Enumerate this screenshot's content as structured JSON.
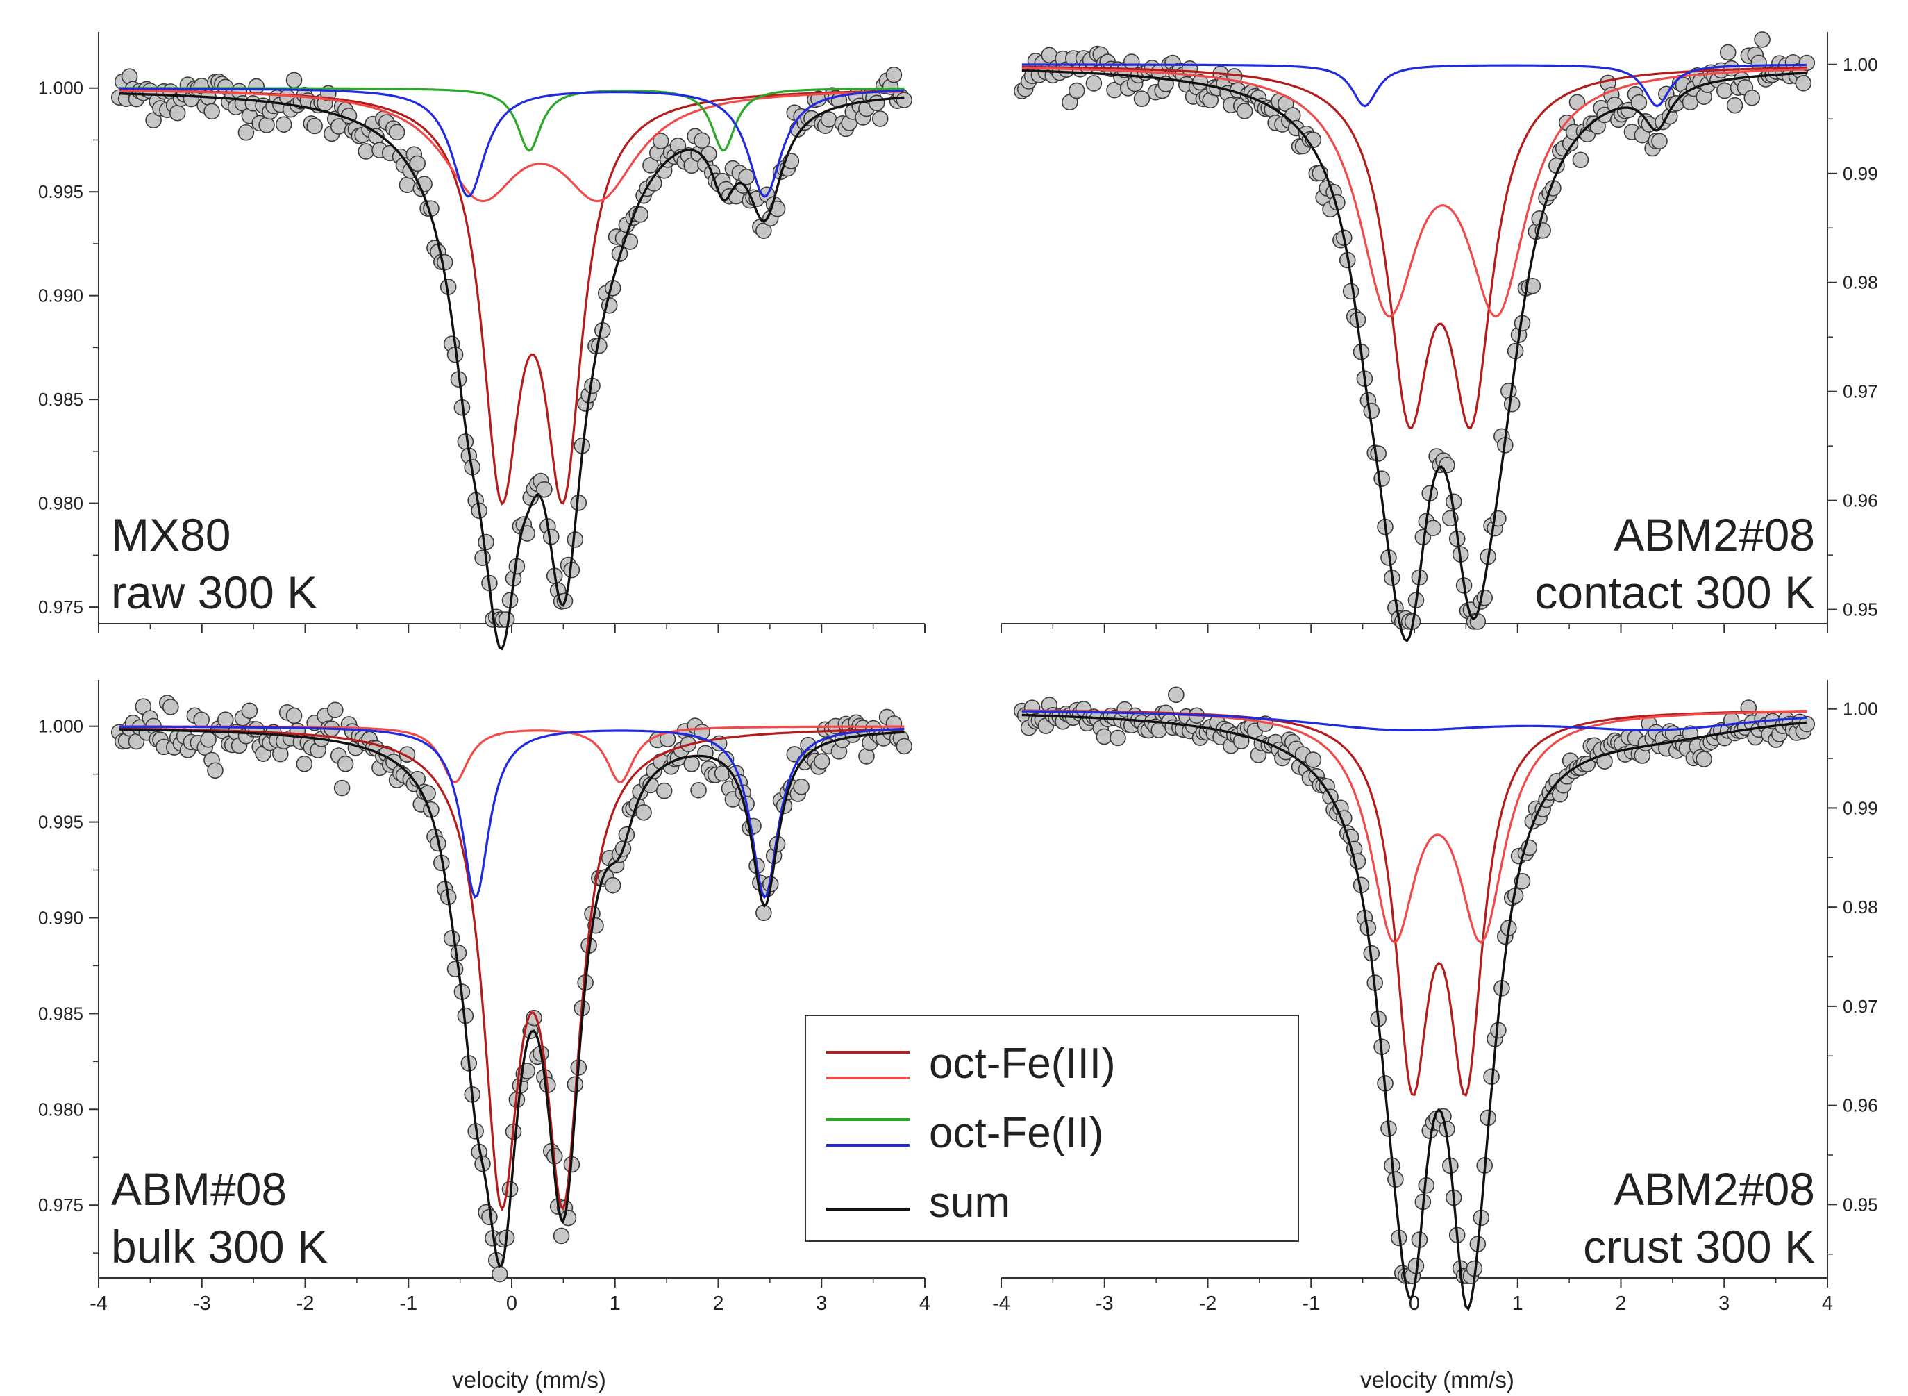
{
  "figure": {
    "x_axis_label": "velocity (mm/s)",
    "legend": {
      "entries": [
        {
          "label": "oct-Fe(III)",
          "colors": [
            "#b51c1c",
            "#f04b4b"
          ]
        },
        {
          "label": "oct-Fe(II)",
          "colors": [
            "#2aa82a",
            "#1f2bdc"
          ]
        },
        {
          "label": "sum",
          "colors": [
            "#111111"
          ]
        }
      ]
    }
  },
  "colors": {
    "fe3_dark": "#b51c1c",
    "fe3_light": "#f04b4b",
    "fe2_green": "#2aa82a",
    "fe2_blue": "#1f2bdc",
    "sum": "#111111",
    "data_fill": "#c4c4c4",
    "data_stroke": "#3a3a3a"
  },
  "chart_data": [
    {
      "id": "mx80",
      "type": "line",
      "title_line1": "MX80",
      "title_line2": "raw 300 K",
      "xlabel": "",
      "ylabel": "",
      "xlim": [
        -4,
        4
      ],
      "ylim": [
        0.9742,
        1.0025
      ],
      "yaxis_side": "left",
      "y_ticks": [
        1.0,
        0.995,
        0.99,
        0.985,
        0.98,
        0.975
      ],
      "y_tick_labels": [
        "1.000",
        "0.995",
        "0.990",
        "0.985",
        "0.980",
        "0.975"
      ],
      "x_ticks": [
        -4,
        -3,
        -2,
        -1,
        0,
        1,
        2,
        3,
        4
      ],
      "x_tick_labels": [],
      "series": [
        {
          "name": "oct-Fe(III) doublet 1",
          "color": "#b51c1c",
          "baseline": 1.0,
          "peaks": [
            [
              -0.1,
              0.45,
              0.0178
            ],
            [
              0.5,
              0.45,
              0.0178
            ]
          ]
        },
        {
          "name": "oct-Fe(III) doublet 2",
          "color": "#f04b4b",
          "baseline": 1.0,
          "peaks": [
            [
              -0.3,
              0.9,
              0.0048
            ],
            [
              0.85,
              0.9,
              0.0048
            ]
          ]
        },
        {
          "name": "oct-Fe(II) doublet 1",
          "color": "#2aa82a",
          "baseline": 1.0,
          "peaks": [
            [
              0.17,
              0.28,
              0.003
            ],
            [
              2.05,
              0.28,
              0.003
            ]
          ]
        },
        {
          "name": "oct-Fe(II) doublet 2",
          "color": "#1f2bdc",
          "baseline": 1.0,
          "peaks": [
            [
              -0.42,
              0.4,
              0.0052
            ],
            [
              2.45,
              0.4,
              0.0052
            ]
          ]
        }
      ],
      "sum": {
        "name": "sum",
        "color": "#111111"
      },
      "data_noise": 0.0006
    },
    {
      "id": "abm2-contact",
      "type": "line",
      "title_line1": "ABM2#08",
      "title_line2": "contact 300 K",
      "xlabel": "",
      "ylabel": "",
      "xlim": [
        -4,
        4
      ],
      "ylim": [
        0.9487,
        1.0026
      ],
      "yaxis_side": "right",
      "y_ticks": [
        1.0,
        0.99,
        0.98,
        0.97,
        0.96,
        0.95
      ],
      "y_tick_labels": [
        "1.00",
        "0.99",
        "0.98",
        "0.97",
        "0.96",
        "0.95"
      ],
      "x_ticks": [
        -4,
        -3,
        -2,
        -1,
        0,
        1,
        2,
        3,
        4
      ],
      "x_tick_labels": [],
      "series": [
        {
          "name": "oct-Fe(III) doublet 1",
          "color": "#b51c1c",
          "baseline": 1.0,
          "peaks": [
            [
              -0.05,
              0.5,
              0.029
            ],
            [
              0.55,
              0.5,
              0.029
            ]
          ]
        },
        {
          "name": "oct-Fe(III) doublet 2",
          "color": "#f04b4b",
          "baseline": 1.0,
          "peaks": [
            [
              -0.25,
              0.7,
              0.021
            ],
            [
              0.8,
              0.7,
              0.021
            ]
          ]
        },
        {
          "name": "oct-Fe(II) doublet",
          "color": "#1f2bdc",
          "baseline": 1.0,
          "peaks": [
            [
              -0.48,
              0.3,
              0.0038
            ],
            [
              2.35,
              0.3,
              0.0038
            ]
          ]
        }
      ],
      "sum": {
        "name": "sum",
        "color": "#111111"
      },
      "data_noise": 0.0012
    },
    {
      "id": "abm-bulk",
      "type": "line",
      "title_line1": "ABM#08",
      "title_line2": "bulk  300 K",
      "xlabel": "velocity (mm/s)",
      "ylabel": "",
      "xlim": [
        -4,
        4
      ],
      "ylim": [
        0.9712,
        1.0022
      ],
      "yaxis_side": "left",
      "y_ticks": [
        1.0,
        0.995,
        0.99,
        0.985,
        0.98,
        0.975
      ],
      "y_tick_labels": [
        "1.000",
        "0.995",
        "0.990",
        "0.985",
        "0.980",
        "0.975"
      ],
      "x_ticks": [
        -4,
        -3,
        -2,
        -1,
        0,
        1,
        2,
        3,
        4
      ],
      "x_tick_labels": [
        "-4",
        "-3",
        "-2",
        "-1",
        "0",
        "1",
        "2",
        "3",
        "4"
      ],
      "series": [
        {
          "name": "oct-Fe(III) doublet 1",
          "color": "#b51c1c",
          "baseline": 1.0,
          "peaks": [
            [
              -0.1,
              0.42,
              0.0227
            ],
            [
              0.5,
              0.42,
              0.0227
            ]
          ]
        },
        {
          "name": "oct-Fe(III) doublet 2",
          "color": "#f04b4b",
          "baseline": 1.0,
          "peaks": [
            [
              -0.55,
              0.32,
              0.0029
            ],
            [
              1.05,
              0.32,
              0.0029
            ]
          ]
        },
        {
          "name": "oct-Fe(II) doublet",
          "color": "#1f2bdc",
          "baseline": 1.0,
          "peaks": [
            [
              -0.35,
              0.32,
              0.0089
            ],
            [
              2.45,
              0.32,
              0.0089
            ]
          ]
        }
      ],
      "sum": {
        "name": "sum",
        "color": "#111111"
      },
      "data_noise": 0.0007
    },
    {
      "id": "abm2-crust",
      "type": "line",
      "title_line1": "ABM2#08",
      "title_line2": "crust 300 K",
      "xlabel": "velocity (mm/s)",
      "ylabel": "",
      "xlim": [
        -4,
        4
      ],
      "ylim": [
        0.9426,
        1.0025
      ],
      "yaxis_side": "right",
      "y_ticks": [
        1.0,
        0.99,
        0.98,
        0.97,
        0.96,
        0.95
      ],
      "y_tick_labels": [
        "1.00",
        "0.99",
        "0.98",
        "0.97",
        "0.96",
        "0.95"
      ],
      "x_ticks": [
        -4,
        -3,
        -2,
        -1,
        0,
        1,
        2,
        3,
        4
      ],
      "x_tick_labels": [
        "-4",
        "-3",
        "-2",
        "-1",
        "0",
        "1",
        "2",
        "3",
        "4"
      ],
      "series": [
        {
          "name": "oct-Fe(III) doublet 1",
          "color": "#b51c1c",
          "baseline": 1.0,
          "peaks": [
            [
              -0.02,
              0.4,
              0.0345
            ],
            [
              0.5,
              0.4,
              0.0345
            ]
          ]
        },
        {
          "name": "oct-Fe(III) doublet 2",
          "color": "#f04b4b",
          "baseline": 1.0,
          "peaks": [
            [
              -0.2,
              0.55,
              0.0215
            ],
            [
              0.65,
              0.55,
              0.0215
            ]
          ]
        },
        {
          "name": "oct-Fe(II) doublet",
          "color": "#1f2bdc",
          "baseline": 1.0,
          "peaks": [
            [
              -0.15,
              2.4,
              0.0018
            ],
            [
              2.35,
              2.4,
              0.0018
            ]
          ]
        }
      ],
      "sum": {
        "name": "sum",
        "color": "#111111"
      },
      "data_noise": 0.0009
    }
  ]
}
